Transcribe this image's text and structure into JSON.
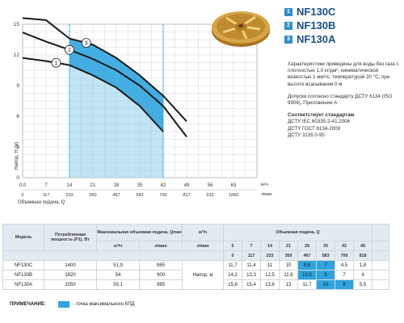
{
  "legend": [
    {
      "num": "1",
      "name": "NF130C"
    },
    {
      "num": "2",
      "name": "NF130B"
    },
    {
      "num": "3",
      "name": "NF130A"
    }
  ],
  "info": {
    "p1": "Характеристики приведены для воды без газа с плотностью 1,0 кг/дм³, кинематической вязкостью 1 мм²/с, температурой 20 °С, при высоте всасывания 0 м",
    "p2": "Допуски согласно стандарту ДСТУ 6134 (ISO 9906), Приложение А",
    "standards_title": "Соответствует стандартам",
    "standards": [
      "ДСТУ IEC 60335-2-41:2006",
      "ДСТУ ГОСТ 6134-2009",
      "ДСТУ 3135.0-95"
    ]
  },
  "chart_data": {
    "type": "line",
    "ylabel": "Напор, Н (м)",
    "xlabel": "Объемная подача, Q",
    "x_unit_1": "м³/ч",
    "x_unit_2": "л/мин",
    "ylim": [
      0,
      15
    ],
    "xlim": [
      0,
      70
    ],
    "y_ticks": [
      "0",
      "3",
      "6",
      "9",
      "12",
      "15"
    ],
    "x_ticks_1": [
      "0,0",
      "7",
      "14",
      "21",
      "28",
      "35",
      "42",
      "49",
      "56",
      "63"
    ],
    "x_ticks_2": [
      "0",
      "117",
      "233",
      "350",
      "467",
      "583",
      "700",
      "817",
      "933",
      "1050"
    ],
    "grid": true,
    "optimal_band_q": [
      14,
      42
    ],
    "series": [
      {
        "name": "1",
        "q": [
          0,
          7,
          14,
          21,
          28,
          35,
          42
        ],
        "h": [
          11.7,
          11.4,
          11,
          10,
          8.8,
          7,
          4.5
        ]
      },
      {
        "name": "2",
        "q": [
          0,
          7,
          14,
          21,
          28,
          35,
          42,
          49
        ],
        "h": [
          14.2,
          13.3,
          12.5,
          11.6,
          10.5,
          9,
          7,
          4
        ]
      },
      {
        "name": "3",
        "q": [
          0,
          7,
          14,
          21,
          28,
          35,
          42,
          49
        ],
        "h": [
          15.6,
          15.4,
          13.6,
          13,
          11.7,
          10,
          8,
          5.5
        ]
      }
    ]
  },
  "table": {
    "head": {
      "model": "Модель",
      "power": "Потребляемая мощность (P1), Вт",
      "qmax": "Максимальная объемная подача, Qmax",
      "qmax_u1": "м³/ч",
      "qmax_u2": "л/мин",
      "flow": "Объемная подача, Q",
      "u1": "м³/ч",
      "u2": "л/мин",
      "q_m3": [
        "0",
        "7",
        "14",
        "21",
        "28",
        "35",
        "42",
        "49"
      ],
      "q_lmin": [
        "0",
        "117",
        "233",
        "350",
        "467",
        "583",
        "700",
        "818"
      ],
      "head_label": "Напор, м"
    },
    "rows": [
      {
        "model": "NF130C",
        "power": "1400",
        "qmax_m3": "51,9",
        "qmax_l": "865",
        "h": [
          "11,7",
          "11,4",
          "11",
          "10",
          "8,8",
          "7",
          "4,5",
          "1,8"
        ],
        "hl": [
          4,
          5
        ]
      },
      {
        "model": "NF130B",
        "power": "1820",
        "qmax_m3": "54",
        "qmax_l": "900",
        "h": [
          "14,2",
          "13,3",
          "12,5",
          "11,6",
          "10,5",
          "9",
          "7",
          "4"
        ],
        "hl": [
          4,
          5
        ]
      },
      {
        "model": "NF130A",
        "power": "2050",
        "qmax_m3": "59,1",
        "qmax_l": "985",
        "h": [
          "15,6",
          "15,4",
          "13,6",
          "13",
          "11,7",
          "10",
          "8",
          "5,5"
        ],
        "hl": [
          5,
          6
        ]
      }
    ]
  },
  "note": {
    "label": "ПРИМЕЧАНИЕ:",
    "text": "- точка максимального КПД"
  },
  "colors": {
    "band": "#2ea4de",
    "band_light": "#8fd0ef",
    "curve": "#1a1a1a",
    "grid": "#c9c9c9"
  }
}
